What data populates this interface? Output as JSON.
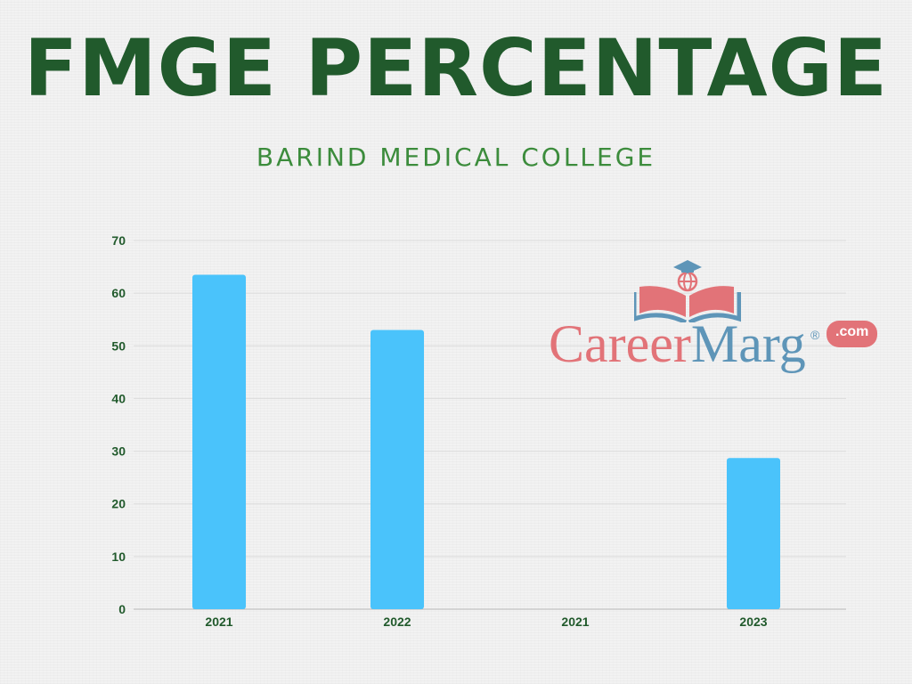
{
  "colors": {
    "title": "#215a2c",
    "subtitle": "#3c8c3c",
    "bar": "#4ac3fb",
    "axis_text": "#215a2c",
    "logo_red": "#e27378",
    "logo_blue": "#5e95b8"
  },
  "logo": {
    "name_part1": "Career",
    "name_part2": "Marg",
    "registered": "®",
    "badge": ".com"
  },
  "chart_data": {
    "type": "bar",
    "title": "FMGE PERCENTAGE",
    "subtitle": "BARIND MEDICAL COLLEGE",
    "categories": [
      "2021",
      "2022",
      "2021",
      "2023"
    ],
    "values": [
      63.5,
      53,
      0,
      28.7
    ],
    "ylim": [
      0,
      70
    ],
    "yticks": [
      0,
      10,
      20,
      30,
      40,
      50,
      60,
      70
    ],
    "xlabel": "",
    "ylabel": "",
    "grid": true,
    "legend": "none"
  }
}
